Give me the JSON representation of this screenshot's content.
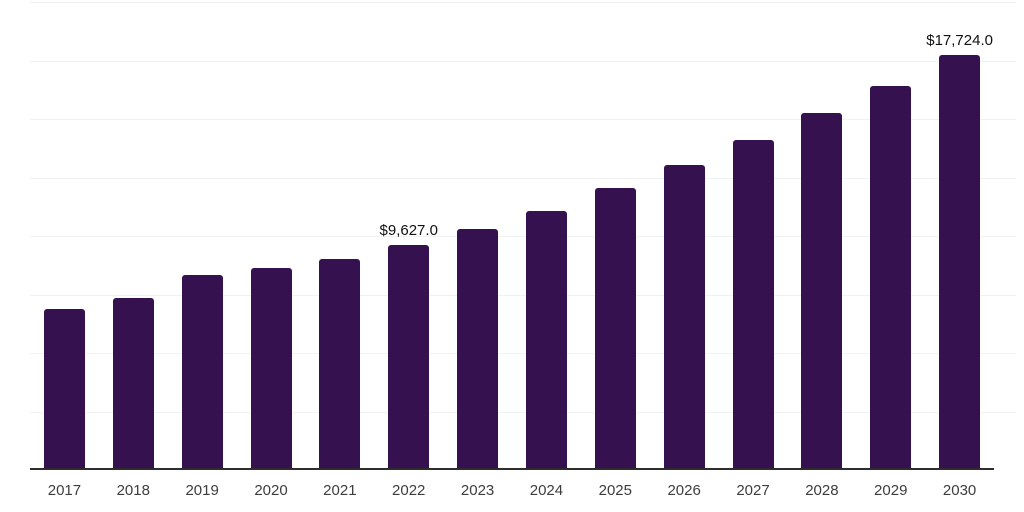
{
  "chart": {
    "background": "#ffffff",
    "bar_color": "#361150",
    "axis_line_color": "#2d2d2d",
    "gridline_color": "#f2f2f2",
    "data_label_color": "#111111",
    "tick_label_color": "#3d3d3d"
  },
  "chart_data": {
    "type": "bar",
    "title": "",
    "xlabel": "",
    "ylabel": "",
    "categories": [
      "2017",
      "2018",
      "2019",
      "2020",
      "2021",
      "2022",
      "2023",
      "2024",
      "2025",
      "2026",
      "2027",
      "2028",
      "2029",
      "2030"
    ],
    "values": [
      6860,
      7370,
      8350,
      8650,
      9030,
      9627,
      10310,
      11080,
      12060,
      13040,
      14100,
      15250,
      16400,
      17724
    ],
    "data_labels": {
      "2022": "$9,627.0",
      "2030": "$17,724.0"
    },
    "ylim": [
      0,
      20000
    ],
    "gridline_interval": 2500,
    "grid": true,
    "legend": false,
    "y_axis_labels_visible": false
  }
}
